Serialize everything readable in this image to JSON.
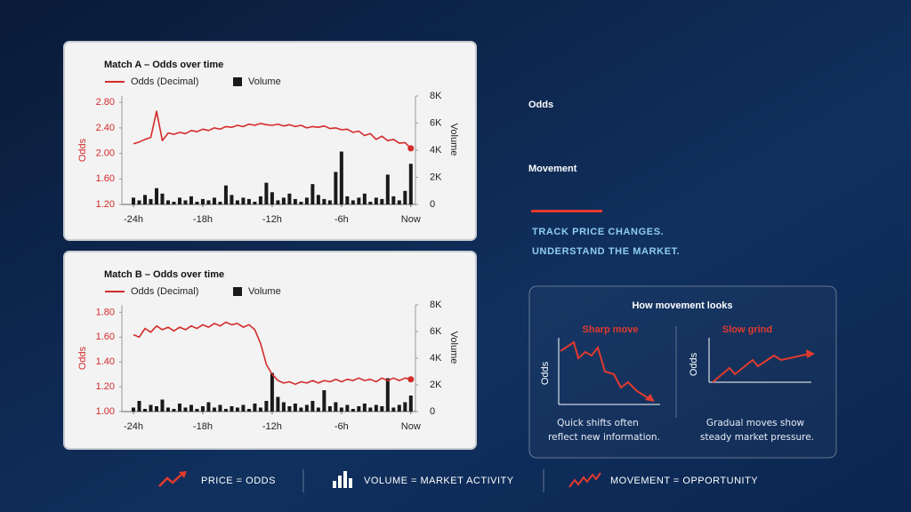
{
  "headline": [
    "Odds",
    "Movement"
  ],
  "tagline": [
    "TRACK PRICE CHANGES.",
    "UNDERSTAND THE MARKET."
  ],
  "chart_data": [
    {
      "type": "line",
      "title": "Match A – Odds over time",
      "ylabel": "Odds",
      "y2label": "Volume",
      "x": [
        -24,
        -23.5,
        -23,
        -22.5,
        -22,
        -21.5,
        -21,
        -20.5,
        -20,
        -19.5,
        -19,
        -18.5,
        -18,
        -17.5,
        -17,
        -16.5,
        -16,
        -15.5,
        -15,
        -14.5,
        -14,
        -13.5,
        -13,
        -12.5,
        -12,
        -11.5,
        -11,
        -10.5,
        -10,
        -9.5,
        -9,
        -8.5,
        -8,
        -7.5,
        -7,
        -6.5,
        -6,
        -5.5,
        -5,
        -4.5,
        -4,
        -3.5,
        -3,
        -2.5,
        -2,
        -1.5,
        -1,
        -0.5,
        0
      ],
      "xlim": [
        -25,
        0.4
      ],
      "xticks": [
        {
          "value": -24,
          "label": "-24h"
        },
        {
          "value": -18,
          "label": "-18h"
        },
        {
          "value": -12,
          "label": "-12h"
        },
        {
          "value": -6,
          "label": "-6h"
        },
        {
          "value": 0,
          "label": "Now"
        }
      ],
      "ylim": [
        1.2,
        2.9
      ],
      "yticks": [
        {
          "value": 1.2,
          "label": "1.20"
        },
        {
          "value": 1.6,
          "label": "1.60"
        },
        {
          "value": 2.0,
          "label": "2.00"
        },
        {
          "value": 2.4,
          "label": "2.40"
        },
        {
          "value": 2.8,
          "label": "2.80"
        }
      ],
      "y2lim": [
        0,
        8000
      ],
      "y2ticks": [
        0,
        {
          "value": 2000,
          "label": "2K"
        },
        {
          "value": 4000,
          "label": "4K"
        },
        {
          "value": 6000,
          "label": "6K"
        },
        {
          "value": 8000,
          "label": "8K"
        }
      ],
      "series": [
        {
          "name": "Odds (Decimal)",
          "color": "#d42a2a",
          "type": "line",
          "values": [
            2.15,
            2.18,
            2.22,
            2.25,
            2.66,
            2.2,
            2.32,
            2.3,
            2.33,
            2.31,
            2.36,
            2.34,
            2.38,
            2.36,
            2.4,
            2.38,
            2.42,
            2.41,
            2.44,
            2.42,
            2.46,
            2.44,
            2.47,
            2.45,
            2.44,
            2.46,
            2.43,
            2.45,
            2.42,
            2.44,
            2.4,
            2.42,
            2.41,
            2.43,
            2.39,
            2.4,
            2.37,
            2.38,
            2.33,
            2.35,
            2.28,
            2.31,
            2.22,
            2.27,
            2.2,
            2.22,
            2.16,
            2.17,
            2.08
          ]
        },
        {
          "name": "Volume",
          "color": "#1a1a1a",
          "type": "bar",
          "axis": "y2",
          "values": [
            500,
            300,
            700,
            400,
            1200,
            800,
            300,
            200,
            500,
            300,
            600,
            200,
            400,
            300,
            500,
            200,
            1400,
            700,
            300,
            500,
            400,
            200,
            600,
            1600,
            900,
            300,
            500,
            800,
            400,
            200,
            500,
            1500,
            700,
            400,
            300,
            2400,
            3900,
            600,
            300,
            500,
            800,
            200,
            500,
            400,
            2200,
            600,
            300,
            1000,
            3000
          ]
        }
      ]
    },
    {
      "type": "line",
      "title": "Match B – Odds over time",
      "ylabel": "Odds",
      "y2label": "Volume",
      "x": [
        -24,
        -23.5,
        -23,
        -22.5,
        -22,
        -21.5,
        -21,
        -20.5,
        -20,
        -19.5,
        -19,
        -18.5,
        -18,
        -17.5,
        -17,
        -16.5,
        -16,
        -15.5,
        -15,
        -14.5,
        -14,
        -13.5,
        -13,
        -12.5,
        -12,
        -11.5,
        -11,
        -10.5,
        -10,
        -9.5,
        -9,
        -8.5,
        -8,
        -7.5,
        -7,
        -6.5,
        -6,
        -5.5,
        -5,
        -4.5,
        -4,
        -3.5,
        -3,
        -2.5,
        -2,
        -1.5,
        -1,
        -0.5,
        0
      ],
      "xlim": [
        -25,
        0.4
      ],
      "xticks": [
        {
          "value": -24,
          "label": "-24h"
        },
        {
          "value": -18,
          "label": "-18h"
        },
        {
          "value": -12,
          "label": "-12h"
        },
        {
          "value": -6,
          "label": "-6h"
        },
        {
          "value": 0,
          "label": "Now"
        }
      ],
      "ylim": [
        1.0,
        1.86
      ],
      "yticks": [
        {
          "value": 1.0,
          "label": "1.00"
        },
        {
          "value": 1.2,
          "label": "1.20"
        },
        {
          "value": 1.4,
          "label": "1.40"
        },
        {
          "value": 1.6,
          "label": "1.60"
        },
        {
          "value": 1.8,
          "label": "1.80"
        }
      ],
      "y2lim": [
        0,
        8000
      ],
      "y2ticks": [
        0,
        {
          "value": 2000,
          "label": "2K"
        },
        {
          "value": 4000,
          "label": "4K"
        },
        {
          "value": 6000,
          "label": "6K"
        },
        {
          "value": 8000,
          "label": "8K"
        }
      ],
      "series": [
        {
          "name": "Odds (Decimal)",
          "color": "#d42a2a",
          "type": "line",
          "values": [
            1.62,
            1.6,
            1.67,
            1.64,
            1.69,
            1.66,
            1.68,
            1.65,
            1.68,
            1.66,
            1.69,
            1.67,
            1.7,
            1.68,
            1.71,
            1.69,
            1.72,
            1.7,
            1.71,
            1.68,
            1.7,
            1.66,
            1.55,
            1.38,
            1.3,
            1.25,
            1.23,
            1.24,
            1.22,
            1.24,
            1.23,
            1.25,
            1.23,
            1.25,
            1.24,
            1.26,
            1.24,
            1.26,
            1.25,
            1.27,
            1.25,
            1.26,
            1.24,
            1.27,
            1.25,
            1.27,
            1.25,
            1.27,
            1.26
          ]
        },
        {
          "name": "Volume",
          "color": "#1a1a1a",
          "type": "bar",
          "axis": "y2",
          "values": [
            300,
            800,
            200,
            500,
            400,
            900,
            300,
            200,
            600,
            300,
            500,
            200,
            400,
            700,
            300,
            500,
            200,
            400,
            300,
            500,
            200,
            600,
            300,
            800,
            2900,
            1100,
            700,
            400,
            600,
            300,
            500,
            800,
            300,
            1600,
            400,
            700,
            300,
            500,
            200,
            400,
            600,
            300,
            500,
            400,
            2500,
            300,
            500,
            700,
            1200
          ]
        }
      ]
    }
  ],
  "inset": {
    "title": "How movement looks",
    "panels": [
      {
        "title": "Sharp move",
        "axis_label": "Odds",
        "caption": [
          "Quick shifts often",
          "reflect new information."
        ]
      },
      {
        "title": "Slow grind",
        "axis_label": "Odds",
        "caption": [
          "Gradual moves show",
          "steady market pressure."
        ]
      }
    ]
  },
  "footer": [
    "PRICE = ODDS",
    "VOLUME = MARKET ACTIVITY",
    "MOVEMENT = OPPORTUNITY"
  ]
}
